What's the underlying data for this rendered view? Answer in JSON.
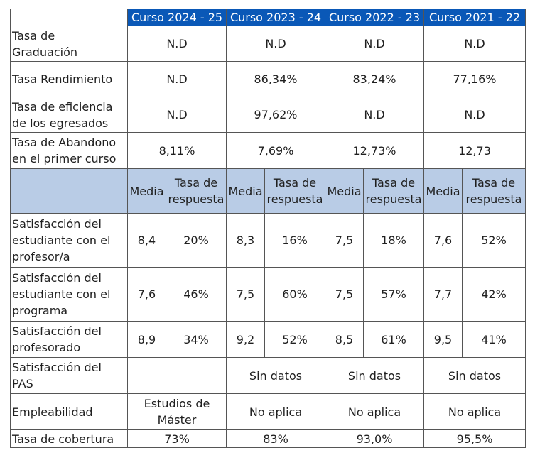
{
  "table": {
    "courses": [
      "Curso 2024 - 25",
      "Curso 2023 - 24",
      "Curso 2022 - 23",
      "Curso 2021 - 22"
    ],
    "rates": [
      {
        "label": [
          "Tasa de",
          "Graduación"
        ],
        "values": [
          "N.D",
          "N.D",
          "N.D",
          "N.D"
        ]
      },
      {
        "label": [
          "Tasa Rendimiento"
        ],
        "values": [
          "N.D",
          "86,34%",
          "83,24%",
          "77,16%"
        ]
      },
      {
        "label": [
          "Tasa de eficiencia",
          "de los egresados"
        ],
        "values": [
          "N.D",
          "97,62%",
          "N.D",
          "N.D"
        ]
      },
      {
        "label": [
          "Tasa de Abandono",
          "en el primer curso"
        ],
        "values": [
          "8,11%",
          "7,69%",
          "12,73%",
          "12,73"
        ]
      }
    ],
    "subheader": {
      "media": "Media",
      "tasa": [
        "Tasa de",
        "respuesta"
      ]
    },
    "satisfaction": [
      {
        "label": [
          "Satisfacción del",
          "estudiante con el",
          "profesor/a"
        ],
        "values": [
          [
            "8,4",
            "20%"
          ],
          [
            "8,3",
            "16%"
          ],
          [
            "7,5",
            "18%"
          ],
          [
            "7,6",
            "52%"
          ]
        ]
      },
      {
        "label": [
          "Satisfacción del",
          "estudiante con el",
          "programa"
        ],
        "values": [
          [
            "7,6",
            "46%"
          ],
          [
            "7,5",
            "60%"
          ],
          [
            "7,5",
            "57%"
          ],
          [
            "7,7",
            "42%"
          ]
        ]
      },
      {
        "label": [
          "Satisfacción del",
          "profesorado"
        ],
        "values": [
          [
            "8,9",
            "34%"
          ],
          [
            "9,2",
            "52%"
          ],
          [
            "8,5",
            "61%"
          ],
          [
            "9,5",
            "41%"
          ]
        ]
      }
    ],
    "pas": {
      "label": [
        "Satisfacción del",
        "PAS"
      ],
      "values": [
        "",
        "",
        "Sin datos",
        "Sin datos",
        "Sin datos"
      ]
    },
    "empleabilidad": {
      "label": [
        "Empleabilidad"
      ],
      "values": [
        [
          "Estudios de",
          "Máster"
        ],
        [
          "No aplica"
        ],
        [
          "No aplica"
        ],
        [
          "No aplica"
        ]
      ]
    },
    "cobertura": {
      "label": [
        "Tasa de cobertura"
      ],
      "values": [
        "73%",
        "83%",
        "93,0%",
        "95,5%"
      ]
    }
  }
}
